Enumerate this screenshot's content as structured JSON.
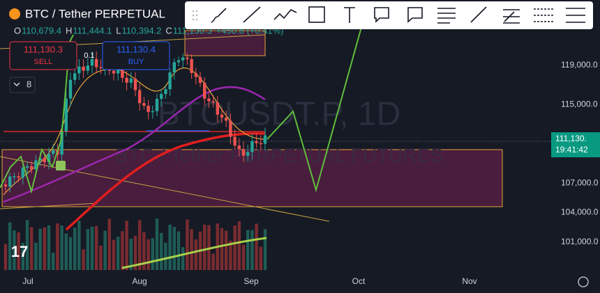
{
  "header": {
    "symbol": "BTC / Tether PERPETUAL",
    "ohlc": [
      {
        "label": "O",
        "value": "110,679.4"
      },
      {
        "label": "H",
        "value": "111,444.1"
      },
      {
        "label": "L",
        "value": "110,394.2"
      },
      {
        "label": "C",
        "value": "111,130.3"
      }
    ],
    "change": "+450.8 (+0.41%)"
  },
  "trade": {
    "sell_price": "111,130.3",
    "sell_label": "SELL",
    "spread": "0.1",
    "buy_price": "111,130.4",
    "buy_label": "BUY"
  },
  "indicators_count": "8",
  "watermark": {
    "symbol": "BTCUSDT.P, 1D",
    "description": "BTC / Tether PERPETUAL FUTURES"
  },
  "price_axis": {
    "ticks": [
      {
        "value": 119000,
        "label": "119,000.0"
      },
      {
        "value": 115000,
        "label": "115,000.0"
      },
      {
        "value": 107000,
        "label": "107,000.0"
      },
      {
        "value": 104000,
        "label": "104,000.0"
      },
      {
        "value": 101000,
        "label": "101,000.0"
      }
    ],
    "last_price": "111,130.",
    "countdown": "19:41:42"
  },
  "time_axis": {
    "labels": [
      "Jul",
      "Aug",
      "Sep",
      "Oct",
      "Nov"
    ]
  }
}
